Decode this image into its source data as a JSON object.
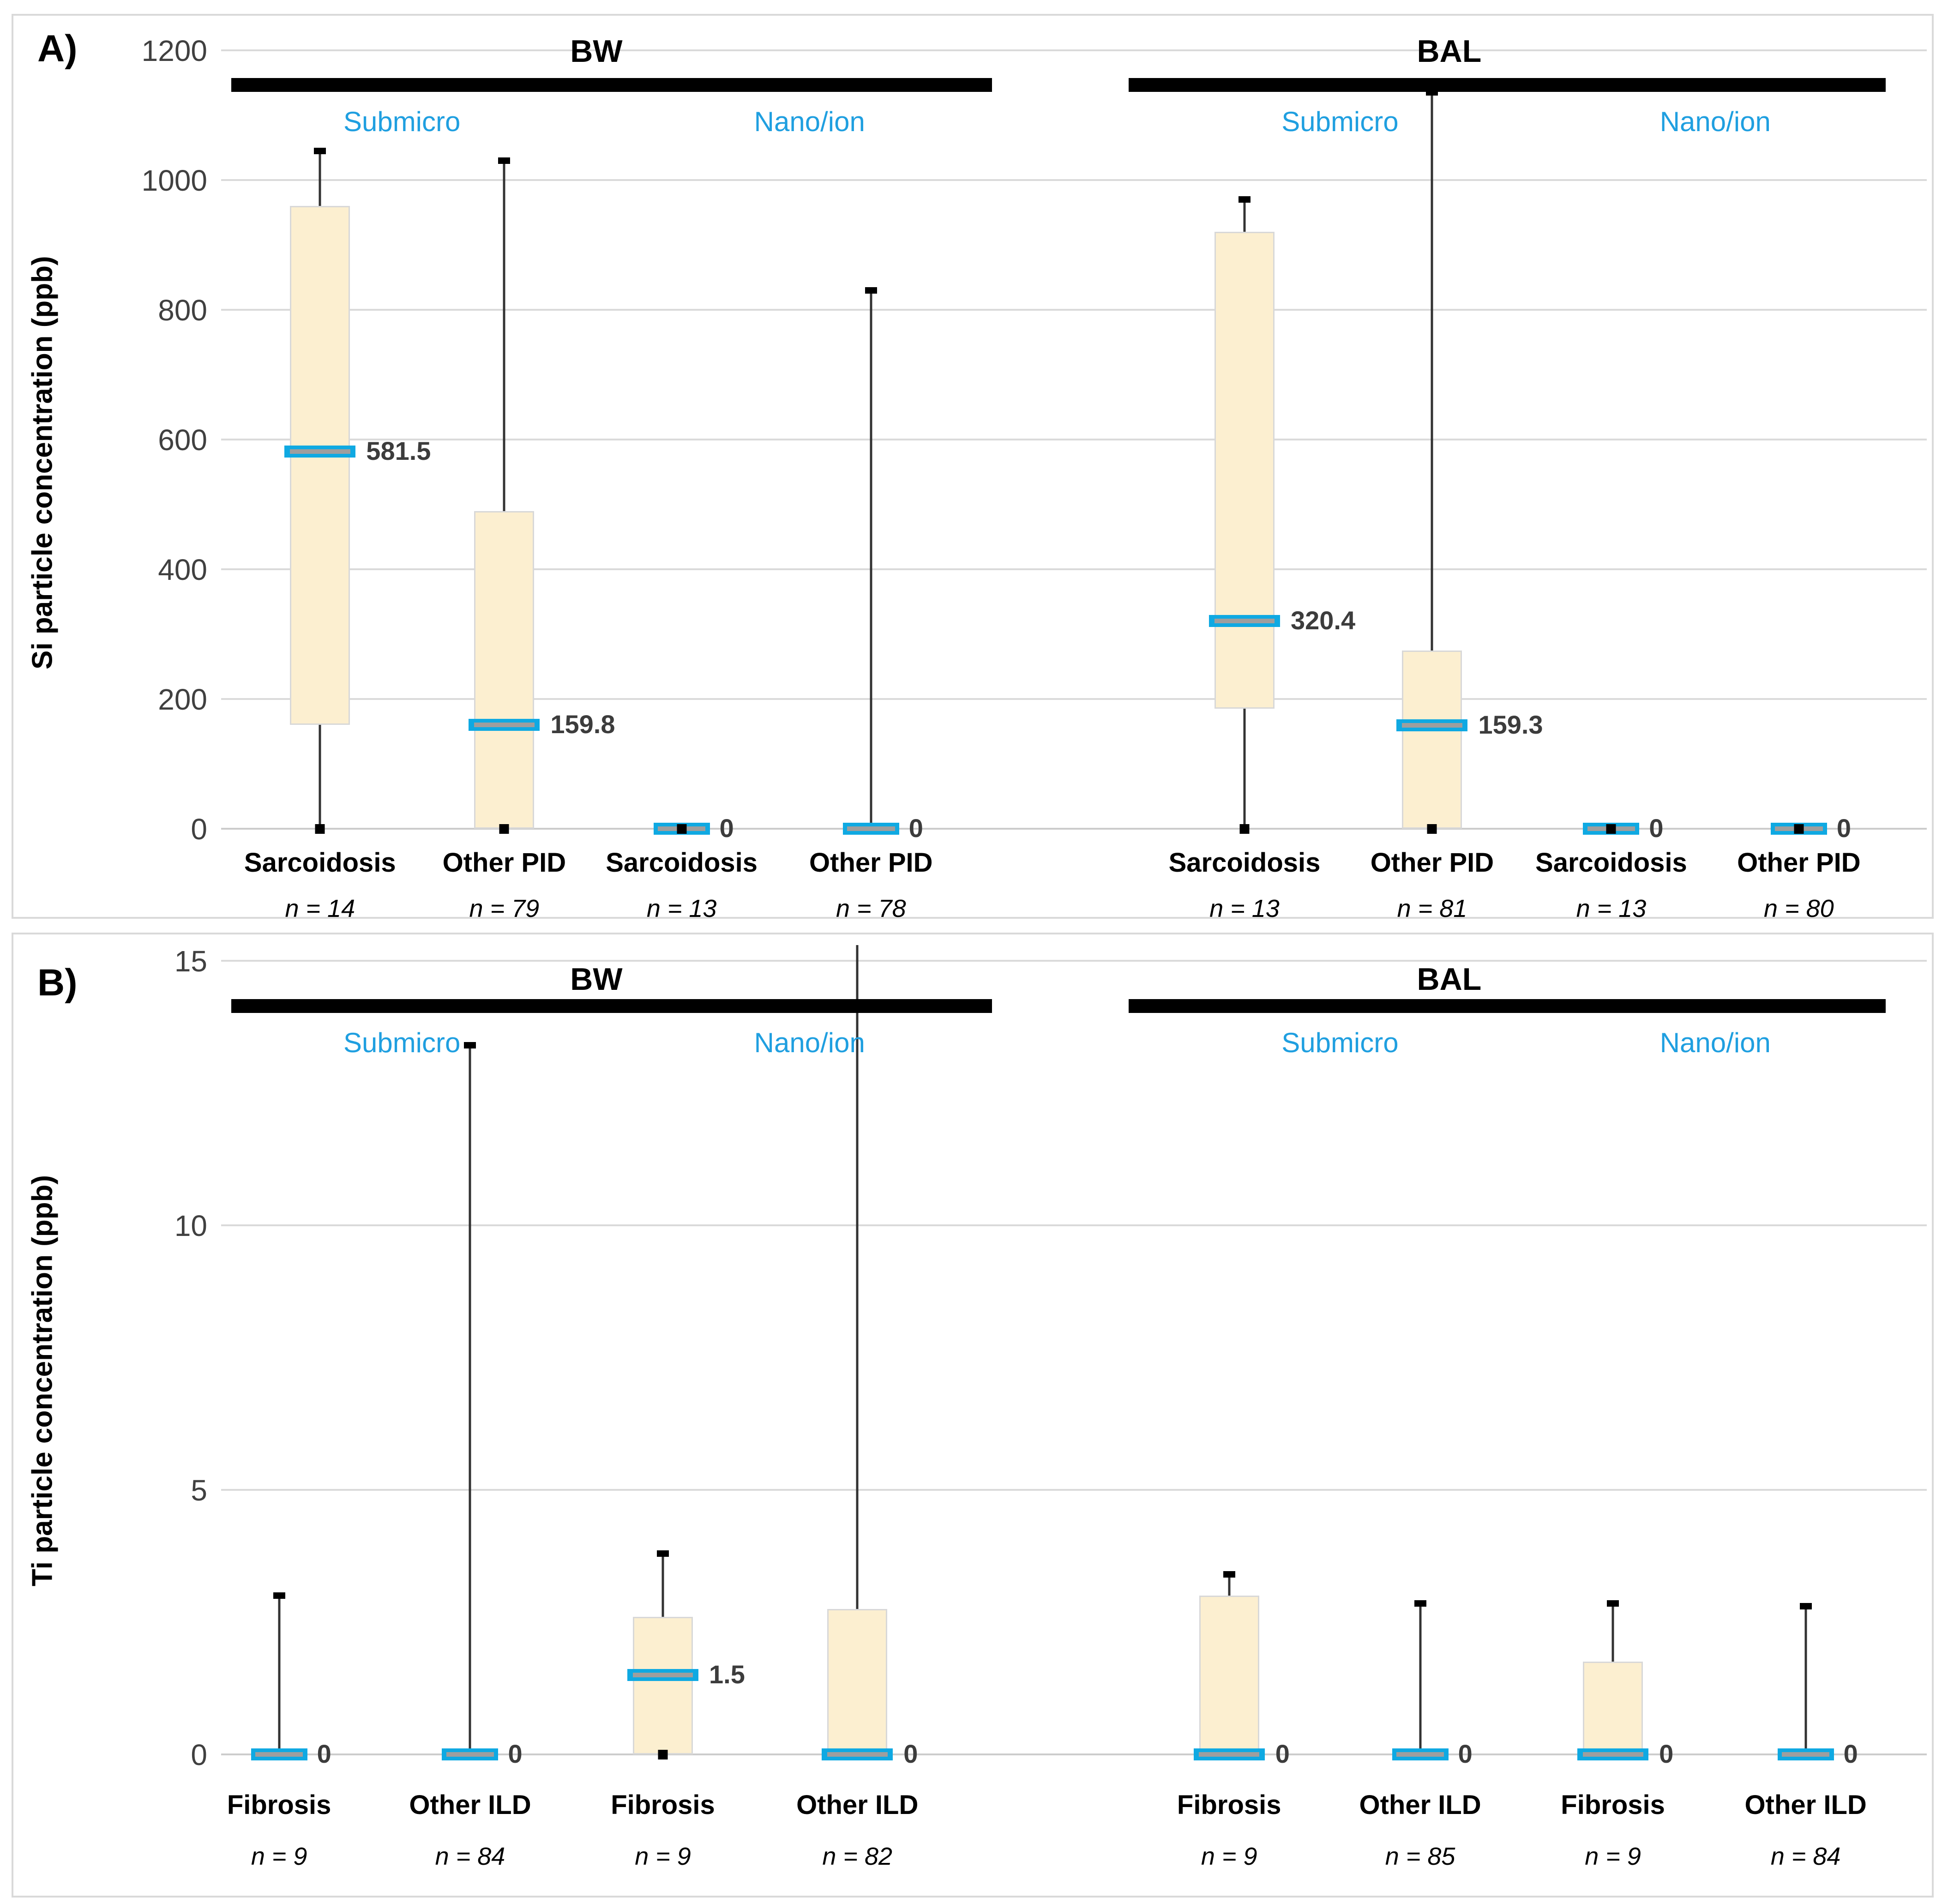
{
  "colors": {
    "box_fill": "#fcefd0",
    "box_border": "#d8d8d8",
    "median_blue": "#0fa9e2",
    "median_inner_gray": "#9e9e9e",
    "whisker": "#333333",
    "marker_black": "#000000",
    "group_sublabel_blue": "#1f9fe0",
    "gridline": "#dadada",
    "axis_text": "#404040",
    "value_label_text": "#3c3c3c",
    "panel_border": "#d9d9d9"
  },
  "chart_data": [
    {
      "type": "box",
      "panel_tag": "A)",
      "ylabel": "Si particle concentration (ppb)",
      "ylim": [
        0,
        1200
      ],
      "yticks": [
        0,
        200,
        400,
        600,
        800,
        1000,
        1200
      ],
      "grid": true,
      "groups": [
        {
          "label": "BW",
          "subgroups": [
            "Submicro",
            "Nano/ion"
          ]
        },
        {
          "label": "BAL",
          "subgroups": [
            "Submicro",
            "Nano/ion"
          ]
        }
      ],
      "boxes": [
        {
          "category": "Sarcoidosis",
          "n": "n = 14",
          "q1": 160,
          "q3": 960,
          "median": 581.5,
          "whisker_low": 0,
          "whisker_high": 1045,
          "mean": 0,
          "value_label": "581.5",
          "top_cap": true
        },
        {
          "category": "Other PID",
          "n": "n = 79",
          "q1": 0,
          "q3": 490,
          "median": 159.8,
          "whisker_low": 0,
          "whisker_high": 1030,
          "mean": 0,
          "value_label": "159.8",
          "top_cap": true
        },
        {
          "category": "Sarcoidosis",
          "n": "n = 13",
          "q1": null,
          "q3": null,
          "median": 0,
          "whisker_low": 0,
          "whisker_high": 0,
          "mean": 0,
          "value_label": "0",
          "top_cap": false
        },
        {
          "category": "Other PID",
          "n": "n = 78",
          "q1": null,
          "q3": null,
          "median": 0,
          "whisker_low": 0,
          "whisker_high": 830,
          "mean": null,
          "value_label": "0",
          "top_cap": true
        },
        {
          "category": "Sarcoidosis",
          "n": "n = 13",
          "q1": 185,
          "q3": 920,
          "median": 320.4,
          "whisker_low": 0,
          "whisker_high": 970,
          "mean": 0,
          "value_label": "320.4",
          "top_cap": true
        },
        {
          "category": "Other PID",
          "n": "n = 81",
          "q1": 0,
          "q3": 275,
          "median": 159.3,
          "whisker_low": 0,
          "whisker_high": 1135,
          "mean": 0,
          "value_label": "159.3",
          "top_cap": true
        },
        {
          "category": "Sarcoidosis",
          "n": "n = 13",
          "q1": null,
          "q3": null,
          "median": 0,
          "whisker_low": 0,
          "whisker_high": 0,
          "mean": 0,
          "value_label": "0",
          "top_cap": false
        },
        {
          "category": "Other PID",
          "n": "n = 80",
          "q1": null,
          "q3": null,
          "median": 0,
          "whisker_low": 0,
          "whisker_high": 0,
          "mean": 0,
          "value_label": "0",
          "top_cap": false
        }
      ]
    },
    {
      "type": "box",
      "panel_tag": "B)",
      "ylabel": "Ti particle concentration (ppb)",
      "ylim": [
        0,
        15
      ],
      "yticks": [
        0,
        5,
        10,
        15
      ],
      "grid": true,
      "groups": [
        {
          "label": "BW",
          "subgroups": [
            "Submicro",
            "Nano/ion"
          ]
        },
        {
          "label": "BAL",
          "subgroups": [
            "Submicro",
            "Nano/ion"
          ]
        }
      ],
      "boxes": [
        {
          "category": "Fibrosis",
          "n": "n = 9",
          "q1": null,
          "q3": null,
          "median": 0,
          "whisker_low": 0,
          "whisker_high": 3.0,
          "mean": null,
          "value_label": "0",
          "top_cap": true
        },
        {
          "category": "Other ILD",
          "n": "n = 84",
          "q1": null,
          "q3": null,
          "median": 0,
          "whisker_low": 0,
          "whisker_high": 13.4,
          "mean": null,
          "value_label": "0",
          "top_cap": true
        },
        {
          "category": "Fibrosis",
          "n": "n = 9",
          "q1": 0,
          "q3": 2.6,
          "median": 1.5,
          "whisker_low": 0,
          "whisker_high": 3.8,
          "mean": 0,
          "value_label": "1.5",
          "top_cap": true
        },
        {
          "category": "Other ILD",
          "n": "n = 82",
          "q1": 0,
          "q3": 2.75,
          "median": 0,
          "whisker_low": 0,
          "whisker_high": 15.3,
          "mean": null,
          "value_label": "0",
          "top_cap": false
        },
        {
          "category": "Fibrosis",
          "n": "n = 9",
          "q1": 0,
          "q3": 3.0,
          "median": 0,
          "whisker_low": 0,
          "whisker_high": 3.4,
          "mean": null,
          "value_label": "0",
          "top_cap": true
        },
        {
          "category": "Other ILD",
          "n": "n = 85",
          "q1": null,
          "q3": null,
          "median": 0,
          "whisker_low": 0,
          "whisker_high": 2.85,
          "mean": null,
          "value_label": "0",
          "top_cap": true
        },
        {
          "category": "Fibrosis",
          "n": "n = 9",
          "q1": 0,
          "q3": 1.75,
          "median": 0,
          "whisker_low": 0,
          "whisker_high": 2.85,
          "mean": null,
          "value_label": "0",
          "top_cap": true
        },
        {
          "category": "Other ILD",
          "n": "n = 84",
          "q1": null,
          "q3": null,
          "median": 0,
          "whisker_low": 0,
          "whisker_high": 2.8,
          "mean": null,
          "value_label": "0",
          "top_cap": true
        }
      ]
    }
  ]
}
